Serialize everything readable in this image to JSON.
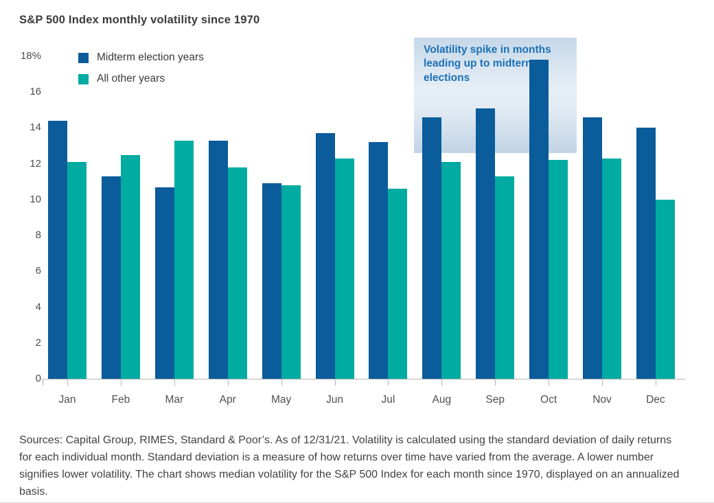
{
  "title": "S&P 500 Index monthly volatility since 1970",
  "legend": {
    "items": [
      {
        "label": "Midterm election years",
        "color": "#0a5c9b"
      },
      {
        "label": "All other years",
        "color": "#00aba2"
      }
    ]
  },
  "annotation": {
    "text": "Volatility spike in months leading up to midterm elections",
    "text_color": "#1b70b5"
  },
  "chart_data": {
    "type": "bar",
    "categories": [
      "Jan",
      "Feb",
      "Mar",
      "Apr",
      "May",
      "Jun",
      "Jul",
      "Aug",
      "Sep",
      "Oct",
      "Nov",
      "Dec"
    ],
    "series": [
      {
        "name": "Midterm election years",
        "color": "#0a5c9b",
        "values": [
          14.4,
          11.3,
          10.7,
          13.3,
          10.9,
          13.7,
          13.2,
          14.6,
          15.1,
          17.8,
          14.6,
          14.0
        ]
      },
      {
        "name": "All other years",
        "color": "#00aba2",
        "values": [
          12.1,
          12.5,
          13.3,
          11.8,
          10.8,
          12.3,
          10.6,
          12.1,
          11.3,
          12.2,
          12.3,
          10.0
        ]
      }
    ],
    "title": "S&P 500 Index monthly volatility since 1970",
    "xlabel": "",
    "ylabel": "",
    "ylim": [
      0,
      18
    ],
    "yticks": [
      "18%",
      "16",
      "14",
      "12",
      "10",
      "8",
      "6",
      "4",
      "2",
      "0"
    ],
    "grid": false,
    "legend_position": "top-left",
    "annotation": "Volatility spike in months leading up to midterm elections"
  },
  "footer": {
    "text": "Sources: Capital Group, RIMES, Standard & Poor’s. As of 12/31/21. Volatility is calculated using the standard deviation of daily returns for each individual month. Standard deviation is a measure of how returns over time have varied from the average. A lower number signifies lower volatility. The chart shows median volatility for the S&P 500 Index for each month since 1970, displayed on an annualized basis."
  }
}
